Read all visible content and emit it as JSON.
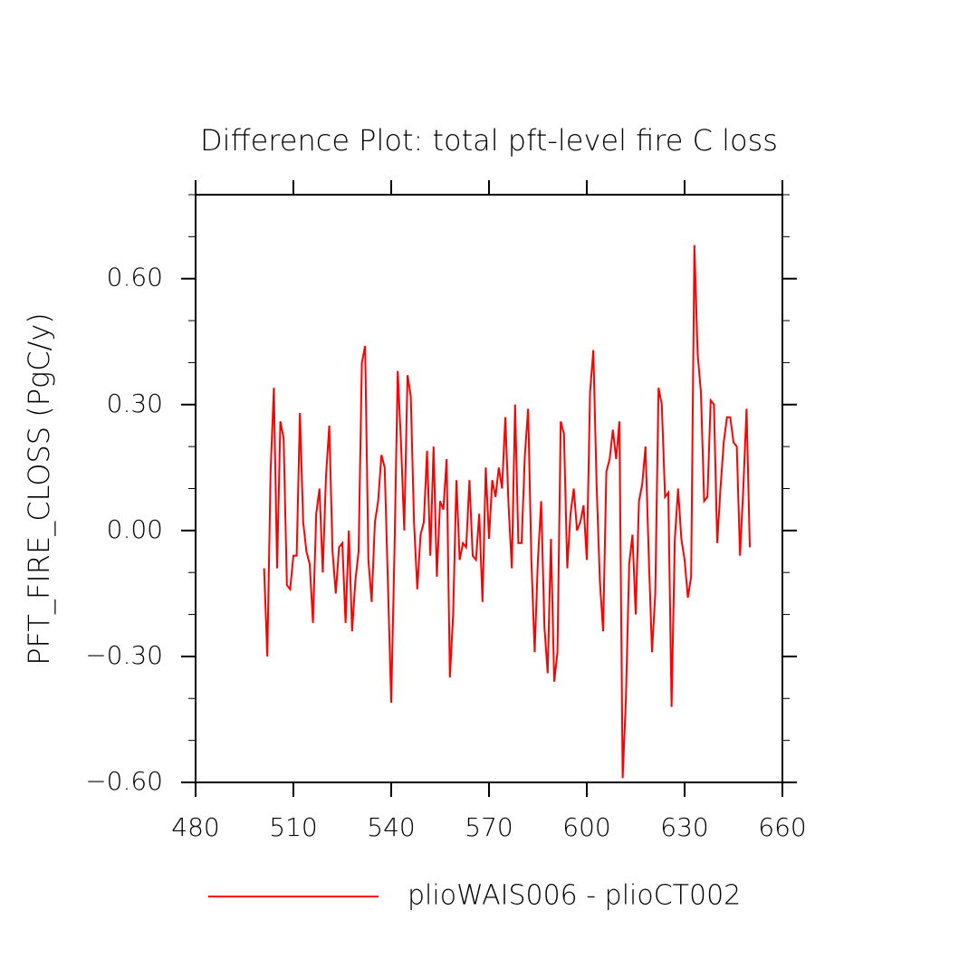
{
  "chart_data": {
    "type": "line",
    "title": "Difference Plot: total pft-level fire C loss",
    "y_label": "PFT_FIRE_CLOSS  (PgC/y)",
    "x": [
      501,
      502,
      503,
      504,
      505,
      506,
      507,
      508,
      509,
      510,
      511,
      512,
      513,
      514,
      515,
      516,
      517,
      518,
      519,
      520,
      521,
      522,
      523,
      524,
      525,
      526,
      527,
      528,
      529,
      530,
      531,
      532,
      533,
      534,
      535,
      536,
      537,
      538,
      539,
      540,
      541,
      542,
      543,
      544,
      545,
      546,
      547,
      548,
      549,
      550,
      551,
      552,
      553,
      554,
      555,
      556,
      557,
      558,
      559,
      560,
      561,
      562,
      563,
      564,
      565,
      566,
      567,
      568,
      569,
      570,
      571,
      572,
      573,
      574,
      575,
      576,
      577,
      578,
      579,
      580,
      581,
      582,
      583,
      584,
      585,
      586,
      587,
      588,
      589,
      590,
      591,
      592,
      593,
      594,
      595,
      596,
      597,
      598,
      599,
      600,
      601,
      602,
      603,
      604,
      605,
      606,
      607,
      608,
      609,
      610,
      611,
      612,
      613,
      614,
      615,
      616,
      617,
      618,
      619,
      620,
      621,
      622,
      623,
      624,
      625,
      626,
      627,
      628,
      629,
      630,
      631,
      632,
      633,
      634,
      635,
      636,
      637,
      638,
      639,
      640,
      641,
      642,
      643,
      644,
      645,
      646,
      647,
      648,
      649,
      650
    ],
    "series": [
      {
        "name": "plioWAIS006 - plioCT002",
        "color": "#ff0000",
        "values": [
          -0.09,
          -0.3,
          0.14,
          0.34,
          -0.09,
          0.26,
          0.22,
          -0.13,
          -0.14,
          -0.06,
          -0.06,
          0.28,
          0.02,
          -0.05,
          -0.08,
          -0.22,
          0.04,
          0.1,
          -0.1,
          0.13,
          0.25,
          -0.05,
          -0.15,
          -0.04,
          -0.03,
          -0.22,
          0.0,
          -0.24,
          -0.12,
          -0.05,
          0.4,
          0.44,
          -0.07,
          -0.17,
          0.02,
          0.07,
          0.18,
          0.15,
          -0.13,
          -0.41,
          -0.05,
          0.38,
          0.21,
          0.0,
          0.37,
          0.32,
          0.02,
          -0.14,
          -0.01,
          0.02,
          0.19,
          -0.06,
          0.2,
          -0.11,
          0.07,
          0.05,
          0.17,
          -0.35,
          -0.2,
          0.12,
          -0.07,
          -0.03,
          -0.04,
          0.12,
          -0.06,
          -0.07,
          0.04,
          -0.17,
          0.15,
          -0.02,
          0.12,
          0.08,
          0.15,
          0.1,
          0.27,
          0.06,
          -0.09,
          0.3,
          -0.03,
          -0.03,
          0.18,
          0.29,
          -0.07,
          -0.29,
          -0.07,
          0.07,
          -0.23,
          -0.34,
          -0.02,
          -0.36,
          -0.29,
          0.26,
          0.23,
          -0.09,
          0.04,
          0.1,
          0.0,
          0.02,
          0.06,
          -0.07,
          0.33,
          0.43,
          0.11,
          -0.12,
          -0.24,
          0.14,
          0.17,
          0.24,
          0.17,
          0.26,
          -0.59,
          -0.4,
          -0.08,
          -0.01,
          -0.2,
          0.07,
          0.11,
          0.2,
          -0.06,
          -0.29,
          -0.15,
          0.34,
          0.3,
          0.08,
          0.09,
          -0.42,
          -0.02,
          0.1,
          -0.02,
          -0.07,
          -0.16,
          -0.11,
          0.68,
          0.42,
          0.33,
          0.07,
          0.08,
          0.31,
          0.3,
          -0.03,
          0.1,
          0.21,
          0.27,
          0.27,
          0.21,
          0.2,
          -0.06,
          0.1,
          0.29,
          -0.04
        ]
      }
    ],
    "xlim": [
      480,
      660
    ],
    "xticks": [
      480,
      510,
      540,
      570,
      600,
      630,
      660
    ],
    "ylim": [
      -0.6,
      0.8
    ],
    "yticks": [
      {
        "value": -0.6,
        "label": "−0.60"
      },
      {
        "value": -0.3,
        "label": "−0.30"
      },
      {
        "value": 0,
        "label": "0.00"
      },
      {
        "value": 0.3,
        "label": "0.30"
      },
      {
        "value": 0.6,
        "label": "0.60"
      }
    ],
    "yminorticks": [
      -0.5,
      -0.4,
      -0.2,
      -0.1,
      0.1,
      0.2,
      0.4,
      0.5,
      0.7,
      0.8
    ]
  }
}
